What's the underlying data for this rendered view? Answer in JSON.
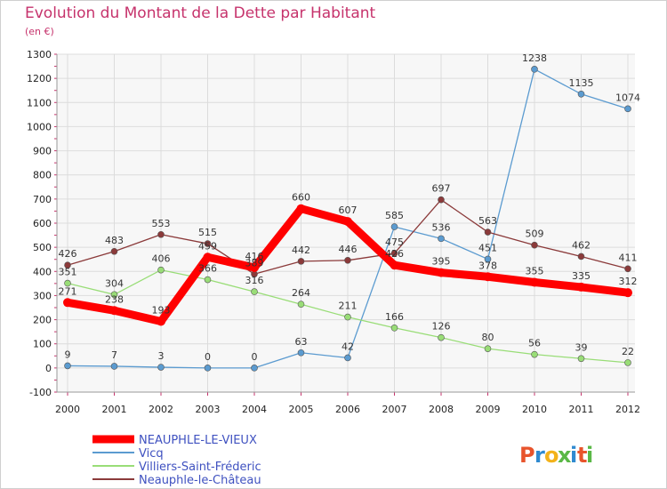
{
  "title": "Evolution du Montant de la Dette par Habitant",
  "subtitle": "(en €)",
  "brand": {
    "text": "Proxiti",
    "letters": [
      "P",
      "r",
      "o",
      "x",
      "i",
      "t",
      "i"
    ],
    "colors": [
      "#e8542c",
      "#2f8ad0",
      "#f3b21a",
      "#5ab846",
      "#2f8ad0",
      "#e8542c",
      "#5ab846"
    ]
  },
  "chart_data": {
    "type": "line",
    "x": [
      "2000",
      "2001",
      "2002",
      "2003",
      "2004",
      "2005",
      "2006",
      "2007",
      "2008",
      "2009",
      "2010",
      "2011",
      "2012"
    ],
    "ylim": [
      -100,
      1300
    ],
    "yticks": [
      "-100",
      "0",
      "100",
      "200",
      "300",
      "400",
      "500",
      "600",
      "700",
      "800",
      "900",
      "1000",
      "1100",
      "1200",
      "1300"
    ],
    "grid": true,
    "legend_position": "bottom-left",
    "series": [
      {
        "name": "Vicq",
        "color": "#5b9bd0",
        "values": [
          9,
          7,
          3,
          0,
          0,
          63,
          42,
          585,
          536,
          451,
          1238,
          1135,
          1074
        ],
        "labels": [
          "9",
          "7",
          "3",
          "0",
          "0",
          "63",
          "42",
          "585",
          "536",
          "451",
          "1238",
          "1135",
          "1074"
        ]
      },
      {
        "name": "Villiers-Saint-Fréderic",
        "color": "#99dd77",
        "values": [
          351,
          304,
          406,
          366,
          316,
          264,
          211,
          166,
          126,
          80,
          56,
          39,
          22
        ],
        "labels": [
          "351",
          "304",
          "406",
          "366",
          "316",
          "264",
          "211",
          "166",
          "126",
          "80",
          "56",
          "39",
          "22"
        ]
      },
      {
        "name": "Neauphle-le-Château",
        "color": "#8b3a3a",
        "values": [
          426,
          483,
          553,
          515,
          389,
          442,
          446,
          475,
          697,
          563,
          509,
          462,
          411
        ],
        "labels": [
          "426",
          "483",
          "553",
          "515",
          "389",
          "442",
          "446",
          "475",
          "697",
          "563",
          "509",
          "462",
          "411"
        ]
      },
      {
        "name": "NEAUPHLE-LE-VIEUX",
        "color": "#ff0000",
        "values": [
          271,
          238,
          193,
          459,
          416,
          660,
          607,
          426,
          395,
          378,
          355,
          335,
          312
        ],
        "labels": [
          "271",
          "238",
          "193",
          "459",
          "416",
          "660",
          "607",
          "426",
          "395",
          "378",
          "355",
          "335",
          "312"
        ],
        "highlight": true
      }
    ]
  }
}
